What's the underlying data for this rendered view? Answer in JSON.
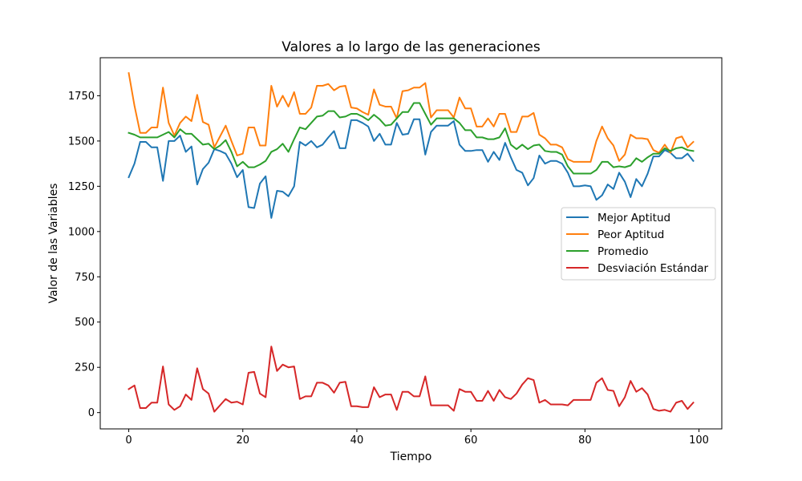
{
  "chart_data": {
    "type": "line",
    "title": "Valores a lo largo de las generaciones",
    "xlabel": "Tiempo",
    "ylabel": "Valor de las Variables",
    "xlim": [
      -5,
      104
    ],
    "ylim": [
      -90,
      1960
    ],
    "xticks": [
      0,
      20,
      40,
      60,
      80,
      100
    ],
    "yticks": [
      0,
      250,
      500,
      750,
      1000,
      1250,
      1500,
      1750
    ],
    "grid": false,
    "legend_position": "center-right",
    "series": [
      {
        "name": "Mejor Aptitud",
        "color": "#1f77b4",
        "values": [
          1300,
          1375,
          1495,
          1495,
          1465,
          1465,
          1280,
          1500,
          1500,
          1530,
          1440,
          1470,
          1260,
          1345,
          1380,
          1455,
          1445,
          1430,
          1375,
          1300,
          1340,
          1135,
          1130,
          1265,
          1305,
          1075,
          1225,
          1220,
          1195,
          1250,
          1495,
          1475,
          1500,
          1465,
          1480,
          1520,
          1555,
          1460,
          1460,
          1615,
          1615,
          1600,
          1580,
          1500,
          1540,
          1480,
          1480,
          1600,
          1535,
          1540,
          1620,
          1620,
          1425,
          1550,
          1585,
          1585,
          1585,
          1610,
          1480,
          1445,
          1445,
          1450,
          1450,
          1385,
          1440,
          1395,
          1490,
          1410,
          1340,
          1325,
          1255,
          1295,
          1420,
          1375,
          1390,
          1390,
          1375,
          1325,
          1250,
          1250,
          1255,
          1250,
          1175,
          1200,
          1260,
          1235,
          1325,
          1275,
          1190,
          1290,
          1250,
          1320,
          1415,
          1415,
          1450,
          1435,
          1405,
          1405,
          1430,
          1390
        ]
      },
      {
        "name": "Peor Aptitud",
        "color": "#ff7f0e",
        "values": [
          1875,
          1695,
          1545,
          1545,
          1575,
          1575,
          1795,
          1600,
          1530,
          1600,
          1635,
          1610,
          1755,
          1605,
          1590,
          1465,
          1525,
          1585,
          1500,
          1420,
          1430,
          1575,
          1575,
          1475,
          1475,
          1805,
          1690,
          1750,
          1690,
          1770,
          1650,
          1650,
          1685,
          1805,
          1805,
          1815,
          1780,
          1800,
          1805,
          1685,
          1680,
          1660,
          1645,
          1785,
          1700,
          1690,
          1690,
          1625,
          1775,
          1780,
          1795,
          1795,
          1820,
          1630,
          1670,
          1670,
          1670,
          1630,
          1740,
          1680,
          1680,
          1580,
          1580,
          1625,
          1580,
          1650,
          1650,
          1550,
          1550,
          1635,
          1635,
          1655,
          1535,
          1515,
          1480,
          1480,
          1465,
          1400,
          1385,
          1385,
          1385,
          1385,
          1500,
          1580,
          1515,
          1475,
          1390,
          1425,
          1535,
          1515,
          1515,
          1510,
          1450,
          1435,
          1480,
          1435,
          1515,
          1525,
          1465,
          1495
        ]
      },
      {
        "name": "Promedio",
        "color": "#2ca02c",
        "values": [
          1545,
          1535,
          1520,
          1520,
          1520,
          1520,
          1535,
          1550,
          1520,
          1565,
          1540,
          1540,
          1510,
          1480,
          1485,
          1455,
          1475,
          1505,
          1440,
          1360,
          1385,
          1355,
          1355,
          1370,
          1390,
          1440,
          1455,
          1485,
          1440,
          1510,
          1575,
          1565,
          1600,
          1635,
          1640,
          1665,
          1665,
          1630,
          1635,
          1650,
          1650,
          1635,
          1615,
          1645,
          1620,
          1585,
          1590,
          1625,
          1660,
          1660,
          1710,
          1710,
          1650,
          1590,
          1625,
          1625,
          1625,
          1625,
          1600,
          1560,
          1560,
          1520,
          1520,
          1510,
          1510,
          1520,
          1570,
          1480,
          1455,
          1480,
          1455,
          1475,
          1480,
          1445,
          1440,
          1440,
          1425,
          1360,
          1320,
          1320,
          1320,
          1320,
          1340,
          1385,
          1385,
          1355,
          1360,
          1355,
          1365,
          1405,
          1385,
          1410,
          1430,
          1430,
          1460,
          1445,
          1460,
          1465,
          1450,
          1445
        ]
      },
      {
        "name": "Desviación Estándar",
        "color": "#d62728",
        "values": [
          130,
          150,
          25,
          25,
          55,
          55,
          255,
          45,
          15,
          35,
          100,
          70,
          245,
          130,
          105,
          5,
          40,
          75,
          55,
          60,
          45,
          220,
          225,
          105,
          85,
          365,
          230,
          265,
          250,
          255,
          75,
          90,
          90,
          165,
          165,
          150,
          110,
          165,
          170,
          35,
          35,
          30,
          30,
          140,
          85,
          100,
          100,
          15,
          115,
          115,
          90,
          90,
          200,
          40,
          40,
          40,
          40,
          10,
          130,
          115,
          115,
          65,
          65,
          120,
          65,
          125,
          85,
          75,
          105,
          155,
          190,
          180,
          55,
          70,
          45,
          45,
          45,
          40,
          70,
          70,
          70,
          70,
          165,
          190,
          125,
          120,
          35,
          85,
          175,
          115,
          135,
          100,
          20,
          10,
          15,
          5,
          55,
          65,
          20,
          55
        ]
      }
    ]
  }
}
